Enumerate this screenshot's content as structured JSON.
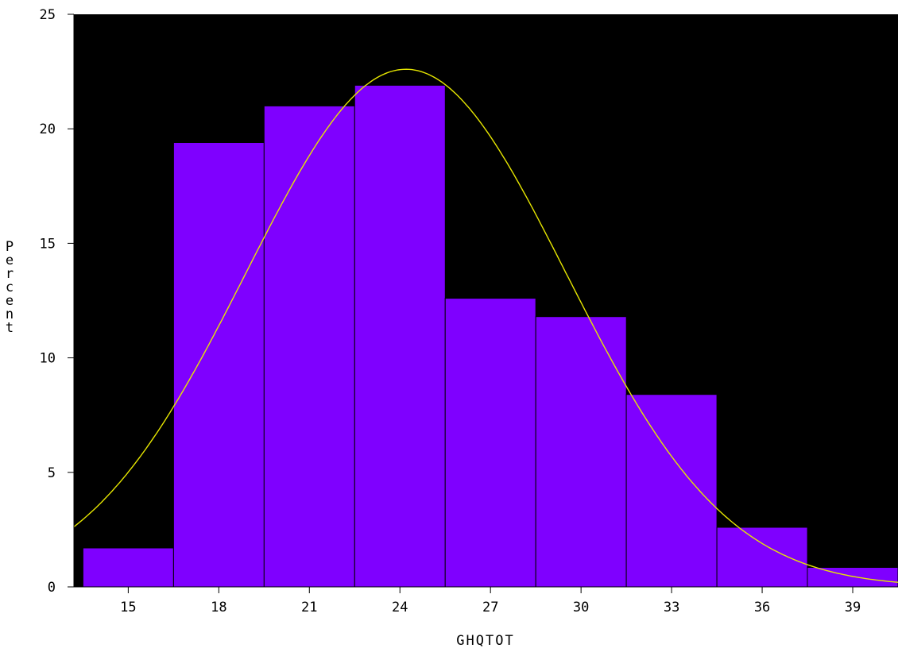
{
  "chart_data": {
    "type": "bar",
    "subtype": "histogram",
    "xlabel": "GHQTOT",
    "ylabel": "Percent",
    "bin_midpoints": [
      15,
      18,
      21,
      24,
      27,
      30,
      33,
      36,
      39
    ],
    "bin_width": 3,
    "values": [
      1.7,
      19.4,
      21.0,
      21.9,
      12.6,
      11.8,
      8.4,
      2.6,
      0.85
    ],
    "xlim": [
      13.2,
      40.5
    ],
    "ylim": [
      0,
      25
    ],
    "x_ticks": [
      15,
      18,
      21,
      24,
      27,
      30,
      33,
      36,
      39
    ],
    "y_ticks": [
      0,
      5,
      10,
      15,
      20,
      25
    ],
    "normal_curve": {
      "mean": 24.2,
      "sd": 5.3,
      "peak": 22.6
    },
    "colors": {
      "plot_background": "#000000",
      "bar_fill": "#7f00ff",
      "bar_edge": "#000000",
      "curve": "#e6e600",
      "page_background": "#ffffff"
    },
    "grid": false,
    "legend": "none"
  }
}
